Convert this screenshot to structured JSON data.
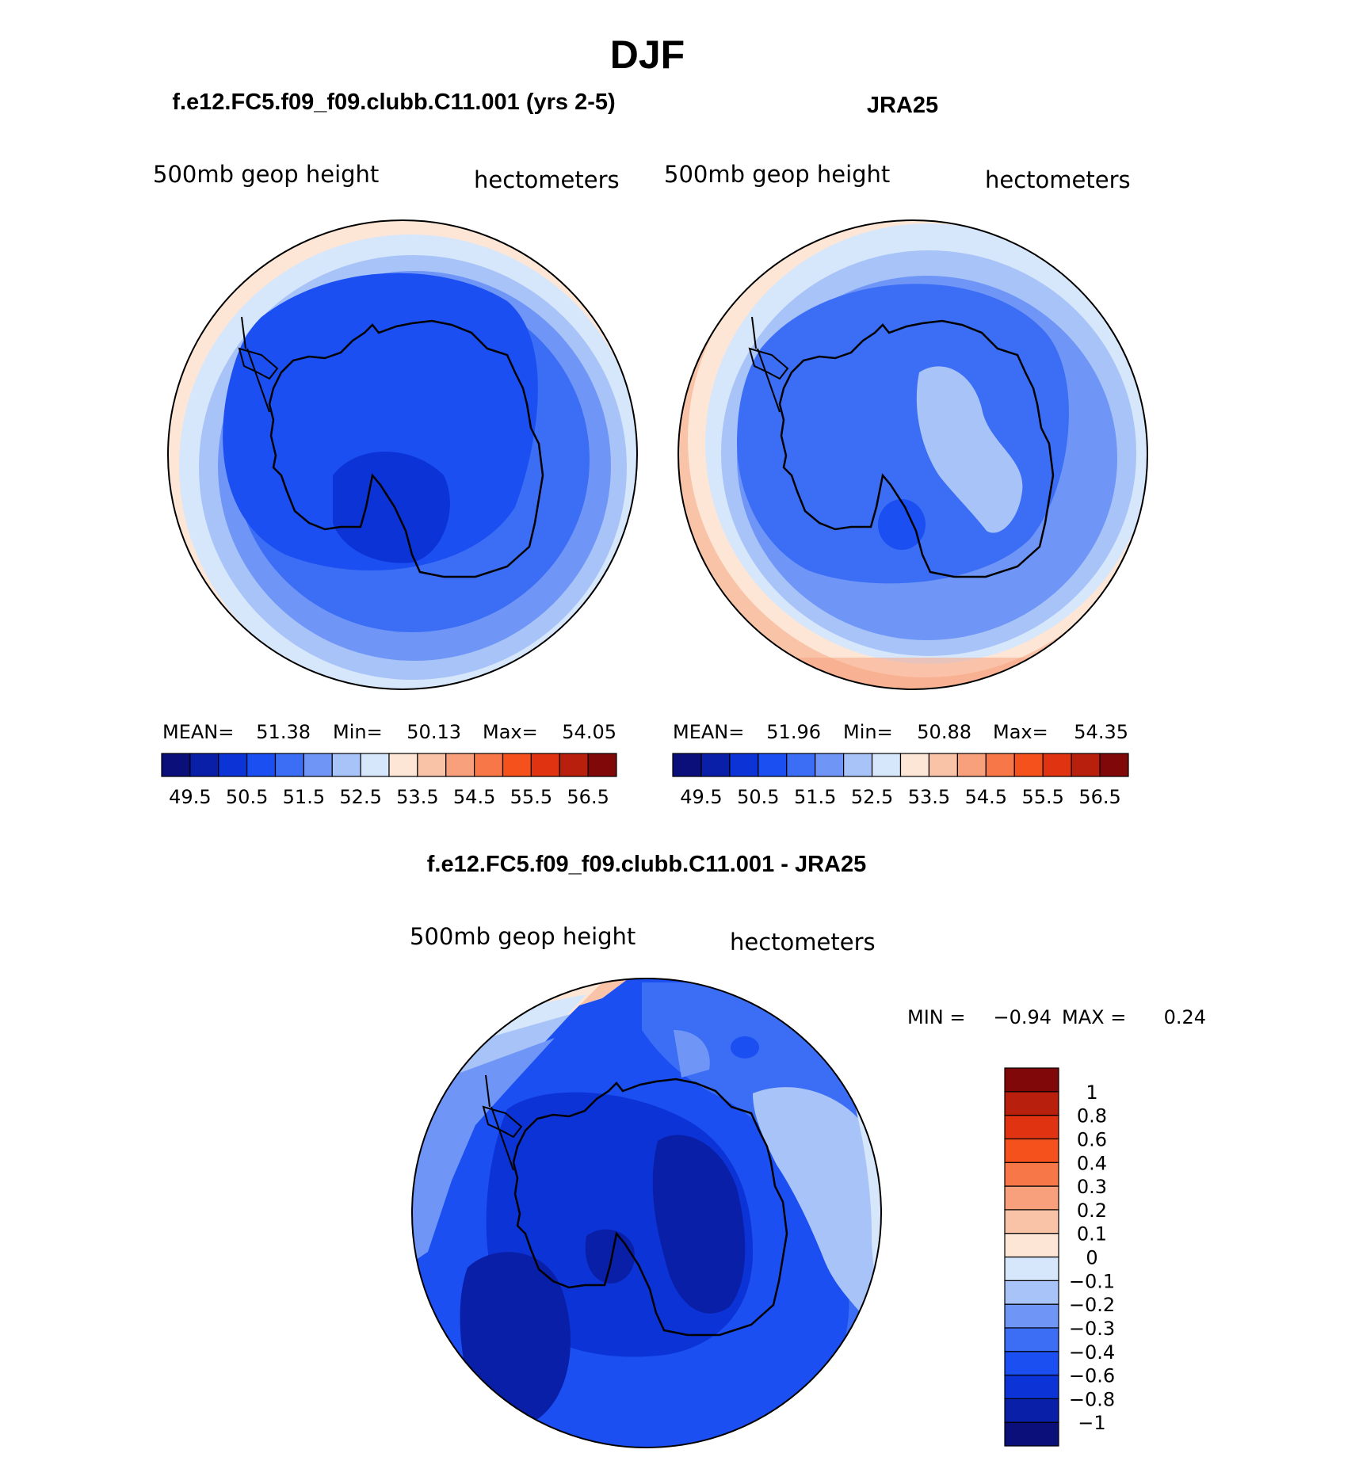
{
  "figure": {
    "season": "DJF",
    "variable_label": "500mb geop height",
    "units_label": "hectometers"
  },
  "panels": [
    {
      "id": "model",
      "title": "f.e12.FC5.f09_f09.clubb.C11.001 (yrs 2-5)",
      "stats": {
        "mean_label": "MEAN=",
        "mean": "51.38",
        "min_label": "Min=",
        "min": "50.13",
        "max_label": "Max=",
        "max": "54.05"
      }
    },
    {
      "id": "obs",
      "title": "JRA25",
      "stats": {
        "mean_label": "MEAN=",
        "mean": "51.96",
        "min_label": "Min=",
        "min": "50.88",
        "max_label": "Max=",
        "max": "54.35"
      }
    },
    {
      "id": "diff",
      "title": "f.e12.FC5.f09_f09.clubb.C11.001 - JRA25",
      "stats": {
        "min_label": "MIN =",
        "min": "−0.94",
        "max_label": "MAX =",
        "max": "0.24"
      }
    }
  ],
  "abs_colorbar": {
    "colors": [
      "#0a0f7a",
      "#0a1fa8",
      "#0c33d6",
      "#1b4ff2",
      "#3c6ef5",
      "#6f96f6",
      "#a8c3f8",
      "#d6e6fb",
      "#fde6d6",
      "#f9c3a8",
      "#f8a07c",
      "#f77748",
      "#f5511d",
      "#df3312",
      "#b8200d",
      "#800808"
    ],
    "tick_labels": [
      "49.5",
      "50.5",
      "51.5",
      "52.5",
      "53.5",
      "54.5",
      "55.5",
      "56.5"
    ]
  },
  "diff_colorbar": {
    "colors": [
      "#0a0f7a",
      "#0a1fa8",
      "#0c33d6",
      "#1b4ff2",
      "#3c6ef5",
      "#6f96f6",
      "#a8c3f8",
      "#d6e6fb",
      "#fde6d6",
      "#f9c3a8",
      "#f8a07c",
      "#f77748",
      "#f5511d",
      "#df3312",
      "#b8200d",
      "#800808"
    ],
    "tick_labels": [
      "−1",
      "−0.8",
      "−0.6",
      "−0.4",
      "−0.3",
      "−0.2",
      "−0.1",
      "0",
      "0.1",
      "0.2",
      "0.3",
      "0.4",
      "0.6",
      "0.8",
      "1"
    ]
  }
}
